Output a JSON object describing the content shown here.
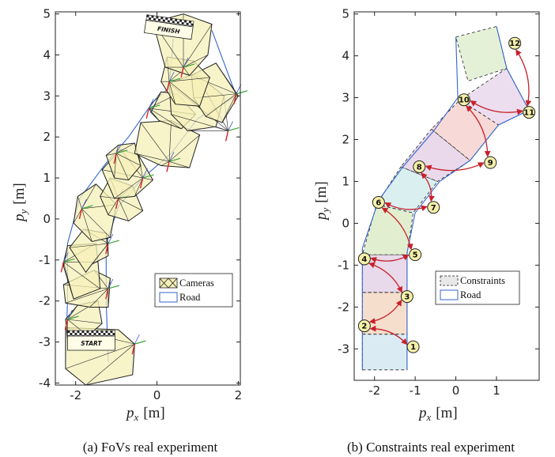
{
  "chart_data": [
    {
      "type": "scatter",
      "caption": "(a) FoVs real experiment",
      "xlabel_var": "p",
      "xlabel_sub": "x",
      "xlabel_unit": "[m]",
      "ylabel_var": "p",
      "ylabel_sub": "y",
      "ylabel_unit": "[m]",
      "xlim": [
        -2.5,
        2.05
      ],
      "ylim": [
        -4.05,
        5.05
      ],
      "xticks": [
        "-2",
        "0",
        "2"
      ],
      "yticks": [
        "5",
        "4",
        "3",
        "2",
        "1",
        "0",
        "-1",
        "-2",
        "-3",
        "-4"
      ],
      "legend": {
        "position": "bottom-right",
        "entries": [
          "Cameras",
          "Road"
        ]
      },
      "start_label": "START",
      "finish_label": "FINISH",
      "road_color": "#3366cc",
      "fov_fill": "#f5f0b8",
      "road_left": [
        [
          -2.25,
          -3.5
        ],
        [
          -2.2,
          -2.0
        ],
        [
          -2.2,
          -0.6
        ],
        [
          -1.9,
          0.5
        ],
        [
          -1.3,
          1.3
        ],
        [
          -0.7,
          2.0
        ],
        [
          -0.1,
          2.85
        ],
        [
          0.3,
          3.2
        ],
        [
          0.4,
          4.4
        ]
      ],
      "road_right": [
        [
          -1.2,
          -3.5
        ],
        [
          -1.25,
          -2.0
        ],
        [
          -1.25,
          -0.6
        ],
        [
          -0.95,
          0.3
        ],
        [
          -0.35,
          1.0
        ],
        [
          0.35,
          1.6
        ],
        [
          1.0,
          2.45
        ],
        [
          1.95,
          3.0
        ],
        [
          1.35,
          4.6
        ]
      ],
      "cameras": [
        {
          "pos": [
            -0.55,
            -3.05
          ],
          "fov": [
            [
              -2.25,
              -3.65
            ],
            [
              -1.75,
              -4.05
            ],
            [
              -0.6,
              -3.8
            ],
            [
              -0.55,
              -3.05
            ],
            [
              -0.95,
              -2.7
            ],
            [
              -2.25,
              -2.65
            ]
          ]
        },
        {
          "pos": [
            -2.2,
            -2.45
          ],
          "fov": [
            [
              -2.25,
              -2.45
            ],
            [
              -1.95,
              -2.1
            ],
            [
              -1.45,
              -2.0
            ],
            [
              -1.35,
              -2.55
            ],
            [
              -1.7,
              -2.85
            ],
            [
              -2.2,
              -2.9
            ]
          ]
        },
        {
          "pos": [
            -1.2,
            -1.7
          ],
          "fov": [
            [
              -2.3,
              -1.6
            ],
            [
              -2.25,
              -2.05
            ],
            [
              -1.65,
              -2.15
            ],
            [
              -1.2,
              -2.15
            ],
            [
              -1.15,
              -1.45
            ],
            [
              -1.55,
              -1.25
            ]
          ]
        },
        {
          "pos": [
            -2.3,
            -1.05
          ],
          "fov": [
            [
              -2.3,
              -1.15
            ],
            [
              -2.2,
              -0.65
            ],
            [
              -1.5,
              -0.6
            ],
            [
              -1.45,
              -1.05
            ],
            [
              -1.4,
              -1.7
            ],
            [
              -2.05,
              -1.95
            ]
          ]
        },
        {
          "pos": [
            -1.2,
            -0.6
          ],
          "fov": [
            [
              -2.15,
              -0.7
            ],
            [
              -1.8,
              -0.25
            ],
            [
              -1.25,
              -0.35
            ],
            [
              -1.2,
              -0.9
            ],
            [
              -1.6,
              -1.1
            ],
            [
              -1.75,
              -1.3
            ]
          ]
        },
        {
          "pos": [
            -1.85,
            0.25
          ],
          "fov": [
            [
              -2.05,
              -0.1
            ],
            [
              -1.95,
              0.55
            ],
            [
              -1.5,
              0.85
            ],
            [
              -1.0,
              0.35
            ],
            [
              -1.15,
              -0.45
            ],
            [
              -1.6,
              -0.55
            ]
          ]
        },
        {
          "pos": [
            -0.95,
            0.5
          ],
          "fov": [
            [
              -1.4,
              0.55
            ],
            [
              -1.15,
              1.0
            ],
            [
              -0.6,
              0.8
            ],
            [
              -0.35,
              0.2
            ],
            [
              -0.7,
              -0.05
            ],
            [
              -1.2,
              0.1
            ]
          ]
        },
        {
          "pos": [
            -0.35,
            1.0
          ],
          "fov": [
            [
              -1.35,
              1.2
            ],
            [
              -0.9,
              1.7
            ],
            [
              -0.45,
              1.55
            ],
            [
              -0.1,
              0.95
            ],
            [
              -0.55,
              0.55
            ],
            [
              -1.05,
              0.5
            ]
          ]
        },
        {
          "pos": [
            -1.0,
            1.6
          ],
          "fov": [
            [
              -1.25,
              1.55
            ],
            [
              -0.95,
              1.8
            ],
            [
              -0.55,
              1.85
            ],
            [
              -0.4,
              1.3
            ],
            [
              -0.7,
              0.95
            ],
            [
              -1.05,
              1.0
            ]
          ]
        },
        {
          "pos": [
            0.3,
            1.4
          ],
          "fov": [
            [
              -0.4,
              2.35
            ],
            [
              0.35,
              2.4
            ],
            [
              1.05,
              2.05
            ],
            [
              0.8,
              1.25
            ],
            [
              0.1,
              1.3
            ],
            [
              -0.55,
              1.6
            ]
          ]
        },
        {
          "pos": [
            -0.2,
            2.7
          ],
          "fov": [
            [
              0.1,
              3.1
            ],
            [
              0.5,
              3.05
            ],
            [
              0.95,
              2.55
            ],
            [
              0.6,
              2.2
            ],
            [
              0.05,
              2.4
            ],
            [
              -0.15,
              2.6
            ]
          ]
        },
        {
          "pos": [
            1.75,
            2.15
          ],
          "fov": [
            [
              0.3,
              3.3
            ],
            [
              0.95,
              3.55
            ],
            [
              1.65,
              3.0
            ],
            [
              1.45,
              2.25
            ],
            [
              0.75,
              2.15
            ],
            [
              0.35,
              2.55
            ]
          ]
        },
        {
          "pos": [
            1.95,
            3.05
          ],
          "fov": [
            [
              0.85,
              3.5
            ],
            [
              1.45,
              3.8
            ],
            [
              2.0,
              3.0
            ],
            [
              1.6,
              2.35
            ],
            [
              1.2,
              2.5
            ],
            [
              0.9,
              2.95
            ]
          ]
        },
        {
          "pos": [
            0.3,
            3.35
          ],
          "fov": [
            [
              0.1,
              3.35
            ],
            [
              0.25,
              3.95
            ],
            [
              0.9,
              3.85
            ],
            [
              1.3,
              3.45
            ],
            [
              1.05,
              2.75
            ],
            [
              0.45,
              2.8
            ]
          ]
        },
        {
          "pos": [
            0.65,
            3.7
          ],
          "fov": [
            [
              -0.1,
              4.8
            ],
            [
              0.65,
              5.0
            ],
            [
              1.35,
              4.75
            ],
            [
              1.25,
              4.0
            ],
            [
              0.8,
              3.5
            ],
            [
              0.2,
              3.7
            ]
          ]
        }
      ]
    },
    {
      "type": "scatter",
      "caption": "(b) Constraints real experiment",
      "xlabel_var": "p",
      "xlabel_sub": "x",
      "xlabel_unit": "[m]",
      "ylabel_var": "p",
      "ylabel_sub": "y",
      "ylabel_unit": "[m]",
      "xlim": [
        -2.5,
        2.05
      ],
      "ylim": [
        -3.75,
        5.05
      ],
      "xticks": [
        "-2",
        "-1",
        "0",
        "1"
      ],
      "yticks": [
        "5",
        "4",
        "3",
        "2",
        "1",
        "0",
        "-1",
        "-2",
        "-3"
      ],
      "legend": {
        "position": "bottom-right",
        "entries": [
          "Constraints",
          "Road"
        ]
      },
      "arrow_color": "#c8202a",
      "waypoints": [
        {
          "label": "1",
          "x": -1.05,
          "y": -2.95
        },
        {
          "label": "2",
          "x": -2.25,
          "y": -2.45
        },
        {
          "label": "3",
          "x": -1.2,
          "y": -1.75
        },
        {
          "label": "4",
          "x": -2.25,
          "y": -0.85
        },
        {
          "label": "5",
          "x": -1.0,
          "y": -0.75
        },
        {
          "label": "6",
          "x": -1.9,
          "y": 0.5
        },
        {
          "label": "7",
          "x": -0.55,
          "y": 0.38
        },
        {
          "label": "8",
          "x": -0.9,
          "y": 1.35
        },
        {
          "label": "9",
          "x": 0.85,
          "y": 1.45
        },
        {
          "label": "10",
          "x": 0.2,
          "y": 2.95
        },
        {
          "label": "11",
          "x": 1.8,
          "y": 2.65
        },
        {
          "label": "12",
          "x": 1.45,
          "y": 4.3
        }
      ],
      "arrows": [
        [
          "1",
          "2"
        ],
        [
          "2",
          "3"
        ],
        [
          "3",
          "4"
        ],
        [
          "4",
          "5"
        ],
        [
          "5",
          "6"
        ],
        [
          "6",
          "7"
        ],
        [
          "7",
          "8"
        ],
        [
          "8",
          "9"
        ],
        [
          "9",
          "10"
        ],
        [
          "10",
          "11"
        ],
        [
          "11",
          "12"
        ]
      ],
      "regions": [
        {
          "color": "#d4e8f2",
          "pts": [
            [
              -2.3,
              -3.5
            ],
            [
              -1.2,
              -3.5
            ],
            [
              -1.2,
              -2.65
            ],
            [
              -2.3,
              -2.65
            ]
          ]
        },
        {
          "color": "#f4d8c4",
          "pts": [
            [
              -2.3,
              -2.65
            ],
            [
              -1.2,
              -2.65
            ],
            [
              -1.2,
              -1.65
            ],
            [
              -2.3,
              -1.65
            ]
          ]
        },
        {
          "color": "#e4d4e6",
          "pts": [
            [
              -2.3,
              -1.65
            ],
            [
              -1.2,
              -1.65
            ],
            [
              -1.2,
              -0.75
            ],
            [
              -2.3,
              -0.75
            ]
          ]
        },
        {
          "color": "#dcecc8",
          "pts": [
            [
              -2.3,
              -0.75
            ],
            [
              -1.2,
              -0.75
            ],
            [
              -1.05,
              0.25
            ],
            [
              -1.95,
              0.45
            ]
          ]
        },
        {
          "color": "#d4ecec",
          "pts": [
            [
              -1.95,
              0.45
            ],
            [
              -1.05,
              0.25
            ],
            [
              -0.45,
              1.0
            ],
            [
              -1.35,
              1.35
            ]
          ]
        },
        {
          "color": "#e6d2e8",
          "pts": [
            [
              -1.35,
              1.35
            ],
            [
              -0.45,
              1.0
            ],
            [
              0.35,
              1.5
            ],
            [
              -0.6,
              2.25
            ]
          ]
        },
        {
          "color": "#f6d4d0",
          "pts": [
            [
              -0.6,
              2.25
            ],
            [
              0.35,
              1.5
            ],
            [
              1.05,
              2.35
            ],
            [
              0.1,
              2.95
            ]
          ]
        },
        {
          "color": "#ead8ec",
          "pts": [
            [
              0.1,
              2.95
            ],
            [
              1.05,
              2.35
            ],
            [
              1.8,
              2.7
            ],
            [
              1.25,
              3.7
            ]
          ]
        },
        {
          "color": "#dfeed0",
          "pts": [
            [
              0.0,
              4.45
            ],
            [
              1.0,
              4.7
            ],
            [
              1.25,
              3.7
            ],
            [
              0.3,
              3.4
            ]
          ]
        }
      ],
      "road_left": [
        [
          -2.3,
          -3.5
        ],
        [
          -2.3,
          -0.6
        ],
        [
          -1.9,
          0.55
        ],
        [
          -1.3,
          1.35
        ],
        [
          -0.55,
          2.2
        ],
        [
          0.05,
          3.0
        ],
        [
          0.0,
          4.45
        ]
      ],
      "road_right": [
        [
          -1.2,
          -3.5
        ],
        [
          -1.2,
          -0.7
        ],
        [
          -1.0,
          0.25
        ],
        [
          -0.4,
          1.0
        ],
        [
          0.35,
          1.5
        ],
        [
          1.05,
          2.35
        ],
        [
          1.8,
          2.7
        ],
        [
          1.25,
          3.7
        ],
        [
          1.0,
          4.7
        ]
      ]
    }
  ]
}
